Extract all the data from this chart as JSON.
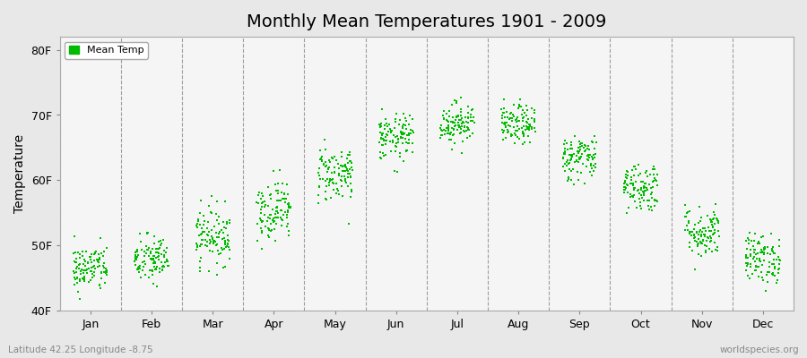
{
  "title": "Monthly Mean Temperatures 1901 - 2009",
  "ylabel": "Temperature",
  "subtitle_left": "Latitude 42.25 Longitude -8.75",
  "subtitle_right": "worldspecies.org",
  "legend_label": "Mean Temp",
  "ylim": [
    40,
    82
  ],
  "yticks": [
    40,
    50,
    60,
    70,
    80
  ],
  "ytick_labels": [
    "40F",
    "50F",
    "60F",
    "70F",
    "80F"
  ],
  "months": [
    "Jan",
    "Feb",
    "Mar",
    "Apr",
    "May",
    "Jun",
    "Jul",
    "Aug",
    "Sep",
    "Oct",
    "Nov",
    "Dec"
  ],
  "month_means": [
    46.5,
    47.8,
    51.5,
    55.5,
    61.0,
    66.5,
    68.8,
    68.5,
    63.5,
    59.0,
    52.0,
    48.0
  ],
  "month_stds": [
    1.8,
    1.9,
    2.2,
    2.3,
    2.2,
    1.8,
    1.6,
    1.5,
    1.8,
    1.9,
    2.0,
    1.9
  ],
  "n_years": 109,
  "dot_color": "#00BB00",
  "dot_size": 3,
  "figure_bg_color": "#e8e8e8",
  "plot_bg_color": "#f5f5f5",
  "title_fontsize": 14,
  "axis_label_fontsize": 10,
  "tick_fontsize": 9,
  "legend_fontsize": 8,
  "subtitle_fontsize": 7.5,
  "seed": 42
}
